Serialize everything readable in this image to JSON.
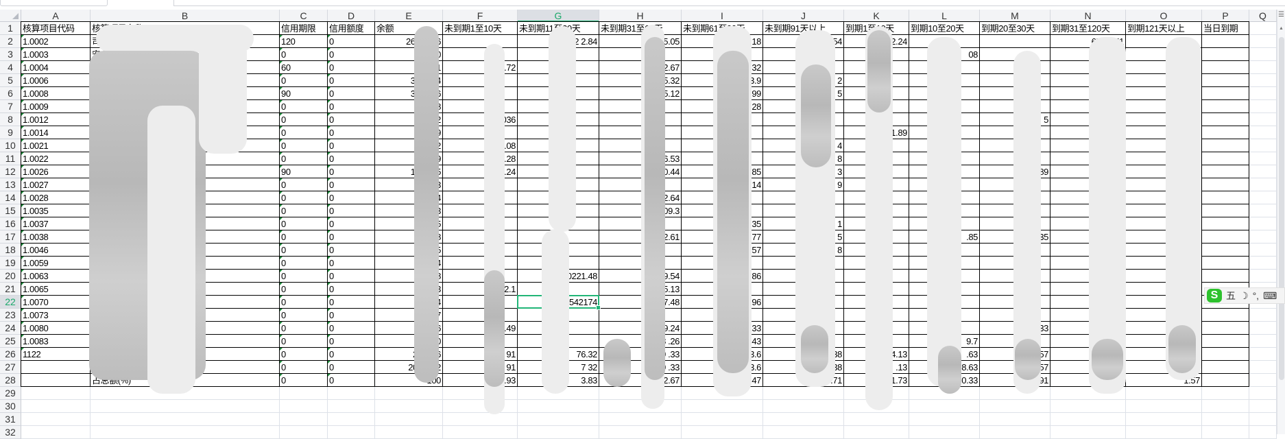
{
  "column_letters": [
    "A",
    "B",
    "C",
    "D",
    "E",
    "F",
    "G",
    "H",
    "I",
    "J",
    "K",
    "L",
    "M",
    "N",
    "O",
    "P",
    "Q"
  ],
  "selected_cell": {
    "column": "G",
    "row": 22,
    "value": "542174"
  },
  "header_row": [
    "核算项目代码",
    "核算项目名称",
    "信用期限",
    "信用额度",
    "余额",
    "未到期1至10天",
    "未到期11至30天",
    "未到期31至60天",
    "未到期61至90天",
    "未到期91天以上",
    "到期1至10天",
    "到期10至20天",
    "到期20至30天",
    "到期31至120天",
    "到期121天以上",
    "当日到期"
  ],
  "rows": [
    [
      "1.0002",
      "司",
      "120",
      "0",
      "265459  6",
      "",
      "22  2.84",
      "3  05.05",
      "9820.18",
      "517012.54",
      "3  2.24",
      "",
      "",
      "65  01.51",
      "",
      ""
    ],
    [
      "1.0003",
      "安  限公司",
      "0",
      "0",
      "494  0",
      "",
      "",
      "",
      "",
      "",
      "",
      "08",
      "",
      "6",
      "3",
      ""
    ],
    [
      "1.0004",
      "德  动  徽）有限公",
      "60",
      "0",
      "2402  1",
      "14  .72",
      "",
      "9  72.67",
      "7121.32",
      "",
      "",
      "",
      "",
      "",
      "",
      ""
    ],
    [
      "1.0006",
      "史  有限公司",
      "0",
      "0",
      "3384  54",
      "",
      "",
      "1  65.32",
      "3.9",
      "2",
      "",
      "",
      "",
      "",
      "",
      ""
    ],
    [
      "1.0008",
      "艾  有限公司",
      "90",
      "0",
      "3350  96",
      "",
      "",
      "1  65.12",
      "99",
      "5",
      "",
      "",
      "",
      "",
      "",
      ""
    ],
    [
      "1.0009",
      "宁  限公司",
      "0",
      "0",
      "22  28",
      "",
      "",
      "",
      "28",
      "",
      "",
      "",
      "",
      "",
      "",
      ""
    ],
    [
      "1.0012",
      "苏  司",
      "0",
      "0",
      "92",
      "036",
      "",
      "",
      "",
      "",
      "",
      "",
      "5",
      "",
      "",
      ""
    ],
    [
      "1.0014",
      "言",
      "0",
      "0",
      "32  89",
      "",
      "",
      "",
      "",
      "",
      "41.89",
      "",
      "",
      "",
      "",
      ""
    ],
    [
      "1.0021",
      "",
      "0",
      "0",
      "1  62",
      ".08",
      "",
      "",
      "",
      "4",
      "",
      "",
      "",
      "",
      "",
      ""
    ],
    [
      "1.0022",
      "司",
      "0",
      "0",
      "154  19",
      ".28",
      "",
      "536.53",
      "",
      "8",
      "",
      "",
      "",
      "",
      "",
      ""
    ],
    [
      "1.0026",
      "",
      "90",
      "0",
      "1382  65",
      "30  .24",
      "",
      "310.44",
      ".85",
      "3",
      "",
      "",
      "3  89",
      "",
      "",
      ""
    ],
    [
      "1.0027",
      "公司",
      "0",
      "0",
      "196  73",
      "",
      "",
      "",
      ".14",
      "9",
      "",
      "",
      "",
      "",
      "",
      ""
    ],
    [
      "1.0028",
      "司",
      "0",
      "0",
      "34  64",
      "",
      "",
      "172.64",
      "",
      "",
      "",
      "",
      "",
      "",
      "",
      ""
    ],
    [
      "1.0035",
      "限",
      "0",
      "0",
      "3",
      "",
      "",
      "6209.3",
      "",
      "",
      "",
      "",
      "",
      "",
      "",
      ""
    ],
    [
      "1.0037",
      "",
      "0",
      "0",
      "465  45",
      "",
      "",
      "",
      ".35",
      "1",
      "",
      "",
      "",
      "",
      "",
      ""
    ],
    [
      "1.0038",
      "限公司",
      "0",
      "0",
      "443  8",
      "",
      "",
      "512.61",
      ".77",
      "5",
      "",
      ".85",
      ".35",
      "2",
      "33",
      ""
    ],
    [
      "1.0046",
      "公司",
      "0",
      "0",
      "163  5",
      "",
      "",
      "",
      ".57",
      "8",
      "",
      "",
      "",
      "",
      "",
      ""
    ],
    [
      "1.0059",
      "",
      "0",
      "0",
      "4",
      "",
      "",
      "",
      "",
      "",
      "",
      "",
      "",
      "0",
      "24",
      ""
    ],
    [
      "1.0063",
      "司",
      "0",
      "0",
      "2676  8",
      "",
      "20221.48",
      "1  39.54",
      ".86",
      "",
      "",
      "",
      "",
      "",
      "",
      ""
    ],
    [
      "1.0065",
      "车制  求有限公司",
      "0",
      "0",
      "23  3",
      "2.1",
      "",
      "75.13",
      "",
      "",
      "",
      "",
      "",
      "",
      "",
      ""
    ],
    [
      "1.0070",
      "组件  锡）有限公司",
      "0",
      "0",
      "1644  4",
      "",
      "542174",
      "27.48",
      ".96",
      "",
      "",
      "",
      "",
      "",
      "",
      ""
    ],
    [
      "1.0073",
      "股份  公司",
      "0",
      "0",
      "165  7",
      "",
      "",
      "",
      "",
      "",
      "",
      "",
      "",
      "",
      "1  67",
      ""
    ],
    [
      "1.0080",
      "助  山）有限公司",
      "0",
      "0",
      "7610  6",
      "20  .49",
      "",
      "2  9.24",
      "233",
      "",
      "",
      "",
      ".33",
      "",
      "",
      ""
    ],
    [
      "1.0083",
      "亭  公司",
      "0",
      "0",
      "3312  0",
      "",
      "",
      "8  .26",
      "2.43",
      "",
      "",
      "9.7",
      "",
      "46",
      "0.54",
      ""
    ],
    [
      "1122",
      "",
      "0",
      "0",
      "204996",
      "80  91",
      "76.32",
      "669  .33",
      "63.6",
      "2  7.38",
      "4.13",
      ".63",
      "1  8.57",
      "7  .55",
      "3  7.69",
      ""
    ],
    [
      "",
      "",
      "0",
      "0",
      "2049962",
      "80  91",
      "7  32",
      "669  .33",
      "7  63.6",
      "2  7.38",
      ".13",
      "8.63",
      "1  8.57",
      "7  .55",
      "3  7.69",
      ""
    ],
    [
      "",
      "占总额(%)",
      "0",
      "0",
      "100",
      "3.93",
      "3.83",
      "32.67",
      "37.47",
      "13.71",
      "1.73",
      "0.33",
      "0.91",
      "3.85",
      "1.57",
      ""
    ]
  ],
  "visible_row_count": 32,
  "ime_toolbar": {
    "logo": "S",
    "mode": "五",
    "moon": "☽",
    "punct": "°,",
    "keyboard_icon": "keyboard-icon"
  },
  "colors": {
    "selection": "#21b577",
    "header_bg": "#f3f4f6",
    "border": "#000000",
    "gridline": "#dde1e8"
  }
}
